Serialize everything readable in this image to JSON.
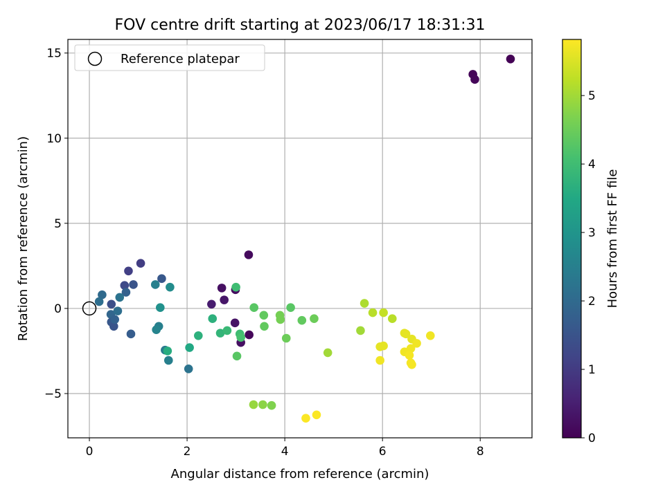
{
  "chart_data": {
    "type": "scatter",
    "title": "FOV centre drift starting at 2023/06/17 18:31:31",
    "xlabel": "Angular distance from reference (arcmin)",
    "ylabel": "Rotation from reference (arcmin)",
    "xlim": [
      -0.44,
      9.06
    ],
    "ylim": [
      -7.6,
      15.8
    ],
    "xticks": [
      0,
      2,
      4,
      6,
      8
    ],
    "xtick_labels": [
      "0",
      "2",
      "4",
      "6",
      "8"
    ],
    "yticks": [
      -5,
      0,
      5,
      10,
      15
    ],
    "ytick_labels": [
      "−5",
      "0",
      "5",
      "10",
      "15"
    ],
    "grid": true,
    "legend": {
      "placement": "top-left",
      "entries": [
        {
          "label": "Reference platepar",
          "marker": "open-circle"
        }
      ]
    },
    "reference_point": {
      "x": 0,
      "y": 0
    },
    "colorbar": {
      "label": "Hours from first FF file",
      "colormap": "viridis",
      "range": [
        0,
        5.82
      ],
      "ticks": [
        0,
        1,
        2,
        3,
        4,
        5
      ],
      "tick_labels": [
        "0",
        "1",
        "2",
        "3",
        "4",
        "5"
      ]
    },
    "points": [
      {
        "x": 8.62,
        "y": 14.65,
        "hours": 0.02
      },
      {
        "x": 7.85,
        "y": 13.75,
        "hours": 0.05
      },
      {
        "x": 7.89,
        "y": 13.45,
        "hours": 0.08
      },
      {
        "x": 3.26,
        "y": 3.15,
        "hours": 0.15
      },
      {
        "x": 2.71,
        "y": 1.2,
        "hours": 0.25
      },
      {
        "x": 2.99,
        "y": 1.1,
        "hours": 0.2
      },
      {
        "x": 2.76,
        "y": 0.5,
        "hours": 0.35
      },
      {
        "x": 2.5,
        "y": 0.25,
        "hours": 0.45
      },
      {
        "x": 2.98,
        "y": -0.85,
        "hours": 0.3
      },
      {
        "x": 3.27,
        "y": -1.55,
        "hours": 0.1
      },
      {
        "x": 3.1,
        "y": -2.0,
        "hours": 0.25
      },
      {
        "x": 1.05,
        "y": 2.65,
        "hours": 1.05
      },
      {
        "x": 0.8,
        "y": 2.2,
        "hours": 1.1
      },
      {
        "x": 0.72,
        "y": 1.35,
        "hours": 1.3
      },
      {
        "x": 0.9,
        "y": 1.4,
        "hours": 1.5
      },
      {
        "x": 1.48,
        "y": 1.75,
        "hours": 1.6
      },
      {
        "x": 0.75,
        "y": 0.95,
        "hours": 1.8
      },
      {
        "x": 0.26,
        "y": 0.8,
        "hours": 2.0
      },
      {
        "x": 0.2,
        "y": 0.4,
        "hours": 2.1
      },
      {
        "x": 0.45,
        "y": 0.25,
        "hours": 1.4
      },
      {
        "x": 0.62,
        "y": 0.65,
        "hours": 2.2
      },
      {
        "x": 0.44,
        "y": -0.35,
        "hours": 1.9
      },
      {
        "x": 0.58,
        "y": -0.15,
        "hours": 2.1
      },
      {
        "x": 0.45,
        "y": -0.8,
        "hours": 1.6
      },
      {
        "x": 0.5,
        "y": -1.05,
        "hours": 1.5
      },
      {
        "x": 0.52,
        "y": -0.65,
        "hours": 1.8
      },
      {
        "x": 0.85,
        "y": -1.5,
        "hours": 1.7
      },
      {
        "x": 1.35,
        "y": 1.4,
        "hours": 2.5
      },
      {
        "x": 1.65,
        "y": 1.25,
        "hours": 2.8
      },
      {
        "x": 1.45,
        "y": 0.05,
        "hours": 2.9
      },
      {
        "x": 1.42,
        "y": -1.05,
        "hours": 2.5
      },
      {
        "x": 1.37,
        "y": -1.25,
        "hours": 2.6
      },
      {
        "x": 1.55,
        "y": -2.45,
        "hours": 2.4
      },
      {
        "x": 1.62,
        "y": -3.05,
        "hours": 2.5
      },
      {
        "x": 2.03,
        "y": -3.55,
        "hours": 2.2
      },
      {
        "x": 1.6,
        "y": -2.5,
        "hours": 3.6
      },
      {
        "x": 2.05,
        "y": -2.3,
        "hours": 3.5
      },
      {
        "x": 2.23,
        "y": -1.6,
        "hours": 3.7
      },
      {
        "x": 2.52,
        "y": -0.6,
        "hours": 3.7
      },
      {
        "x": 2.68,
        "y": -1.45,
        "hours": 3.8
      },
      {
        "x": 2.82,
        "y": -1.3,
        "hours": 3.9
      },
      {
        "x": 3.0,
        "y": 1.25,
        "hours": 4.0
      },
      {
        "x": 3.08,
        "y": -1.5,
        "hours": 4.0
      },
      {
        "x": 3.1,
        "y": -1.7,
        "hours": 4.1
      },
      {
        "x": 3.02,
        "y": -2.8,
        "hours": 4.3
      },
      {
        "x": 3.37,
        "y": 0.05,
        "hours": 4.3
      },
      {
        "x": 3.57,
        "y": -0.4,
        "hours": 4.4
      },
      {
        "x": 3.58,
        "y": -1.05,
        "hours": 4.4
      },
      {
        "x": 3.9,
        "y": -0.4,
        "hours": 4.6
      },
      {
        "x": 3.91,
        "y": -0.65,
        "hours": 4.6
      },
      {
        "x": 4.03,
        "y": -1.75,
        "hours": 4.5
      },
      {
        "x": 4.12,
        "y": 0.05,
        "hours": 4.3
      },
      {
        "x": 4.35,
        "y": -0.7,
        "hours": 4.4
      },
      {
        "x": 4.6,
        "y": -0.6,
        "hours": 4.5
      },
      {
        "x": 3.36,
        "y": -5.65,
        "hours": 4.9
      },
      {
        "x": 3.55,
        "y": -5.65,
        "hours": 4.8
      },
      {
        "x": 3.73,
        "y": -5.7,
        "hours": 4.7
      },
      {
        "x": 4.88,
        "y": -2.6,
        "hours": 5.0
      },
      {
        "x": 5.55,
        "y": -1.3,
        "hours": 5.0
      },
      {
        "x": 5.63,
        "y": 0.3,
        "hours": 5.1
      },
      {
        "x": 5.8,
        "y": -0.25,
        "hours": 5.2
      },
      {
        "x": 6.02,
        "y": -0.25,
        "hours": 5.3
      },
      {
        "x": 6.2,
        "y": -0.6,
        "hours": 5.2
      },
      {
        "x": 6.45,
        "y": -1.45,
        "hours": 5.6
      },
      {
        "x": 6.48,
        "y": -1.5,
        "hours": 5.6
      },
      {
        "x": 6.6,
        "y": -1.8,
        "hours": 5.6
      },
      {
        "x": 6.7,
        "y": -2.05,
        "hours": 5.7
      },
      {
        "x": 6.58,
        "y": -2.35,
        "hours": 5.7
      },
      {
        "x": 6.45,
        "y": -2.55,
        "hours": 5.7
      },
      {
        "x": 6.55,
        "y": -2.75,
        "hours": 5.75
      },
      {
        "x": 6.58,
        "y": -3.2,
        "hours": 5.75
      },
      {
        "x": 6.6,
        "y": -3.3,
        "hours": 5.75
      },
      {
        "x": 6.98,
        "y": -1.6,
        "hours": 5.7
      },
      {
        "x": 6.02,
        "y": -2.2,
        "hours": 5.6
      },
      {
        "x": 5.95,
        "y": -2.25,
        "hours": 5.6
      },
      {
        "x": 5.95,
        "y": -3.05,
        "hours": 5.7
      },
      {
        "x": 4.43,
        "y": -6.45,
        "hours": 5.8
      },
      {
        "x": 4.65,
        "y": -6.25,
        "hours": 5.8
      }
    ]
  }
}
